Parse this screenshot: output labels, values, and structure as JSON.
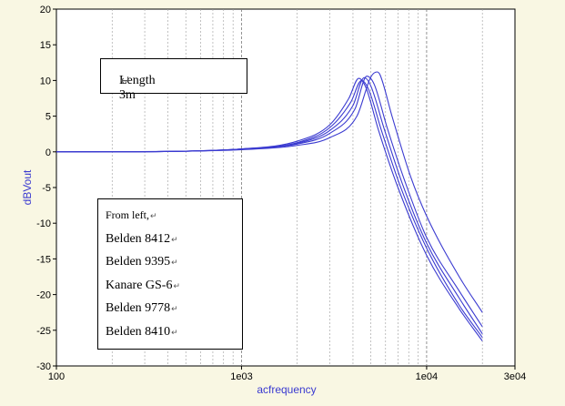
{
  "chart_data": {
    "type": "line",
    "title": "",
    "xlabel": "acfrequency",
    "ylabel": "dBVout",
    "xscale": "log",
    "xlim": [
      100,
      30000
    ],
    "ylim": [
      -30,
      20
    ],
    "x_ticks": [
      {
        "value": 100,
        "label": "100"
      },
      {
        "value": 1000,
        "label": "1e03"
      },
      {
        "value": 10000,
        "label": "1e04"
      },
      {
        "value": 30000,
        "label": "3e04"
      }
    ],
    "y_ticks": [
      20,
      15,
      10,
      5,
      0,
      -5,
      -10,
      -15,
      -20,
      -25,
      -30
    ],
    "grid": "vertical-minor",
    "line_color": "#3a3ad0",
    "series": [
      {
        "name": "Belden 8412",
        "x": [
          100,
          500,
          1000,
          2000,
          3000,
          3800,
          4300,
          4700,
          5500,
          7000,
          10000,
          15000,
          20000
        ],
        "y": [
          0,
          0.1,
          0.4,
          1.5,
          3.8,
          7.5,
          10.3,
          9.0,
          3.0,
          -5.0,
          -14.5,
          -22.0,
          -26.5
        ]
      },
      {
        "name": "Belden 9395",
        "x": [
          100,
          500,
          1000,
          2000,
          3000,
          3900,
          4450,
          4850,
          5700,
          7200,
          10000,
          15000,
          20000
        ],
        "y": [
          0,
          0.1,
          0.4,
          1.3,
          3.4,
          7.0,
          10.0,
          8.8,
          3.0,
          -4.8,
          -13.5,
          -21.5,
          -26.0
        ]
      },
      {
        "name": "Kanare GS-6",
        "x": [
          100,
          500,
          1000,
          2000,
          3000,
          4000,
          4600,
          5000,
          5900,
          7400,
          10000,
          15000,
          20000
        ],
        "y": [
          0,
          0.1,
          0.4,
          1.2,
          3.0,
          6.5,
          10.4,
          9.2,
          3.2,
          -4.5,
          -12.8,
          -20.5,
          -25.5
        ]
      },
      {
        "name": "Belden 9778",
        "x": [
          100,
          500,
          1000,
          2000,
          3000,
          4100,
          4750,
          5200,
          6100,
          7600,
          10000,
          15000,
          20000
        ],
        "y": [
          0,
          0.1,
          0.4,
          1.1,
          2.6,
          6.0,
          10.6,
          9.5,
          3.5,
          -4.0,
          -12.0,
          -19.5,
          -24.5
        ]
      },
      {
        "name": "Belden 8410",
        "x": [
          100,
          500,
          1000,
          2000,
          3000,
          4200,
          5000,
          5400,
          5600,
          6500,
          8200,
          10000,
          15000,
          20000
        ],
        "y": [
          0,
          0.1,
          0.3,
          0.9,
          2.0,
          5.0,
          10.5,
          11.2,
          10.8,
          5.0,
          -3.5,
          -9.0,
          -17.5,
          -22.5
        ]
      }
    ]
  },
  "annotations": {
    "length_box": "Length 3m",
    "legend_heading": "From left,",
    "legend_entries": [
      "Belden 8412",
      "Belden 9395",
      "Kanare GS-6",
      "Belden 9778",
      "Belden 8410"
    ],
    "return_mark": "↵"
  }
}
